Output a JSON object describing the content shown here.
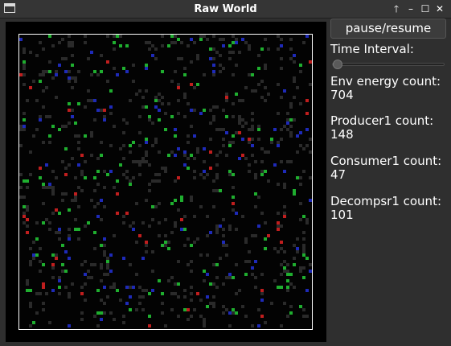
{
  "window": {
    "title": "Raw World",
    "controls": [
      "🡑",
      "–",
      "☐",
      "✕"
    ]
  },
  "controls": {
    "pause_resume_label": "pause/resume",
    "time_interval_label": "Time Interval:",
    "time_interval_value": 0
  },
  "stats": [
    {
      "label": "Env energy count:",
      "value": "704"
    },
    {
      "label": "Producer1 count:",
      "value": "148"
    },
    {
      "label": "Consumer1 count:",
      "value": "47"
    },
    {
      "label": "Decompsr1 count:",
      "value": "101"
    }
  ],
  "colors": {
    "env_energy": "#2a2a2a",
    "producer": "#1fae2f",
    "consumer": "#c01e1e",
    "decomposer": "#1e2ab8"
  }
}
